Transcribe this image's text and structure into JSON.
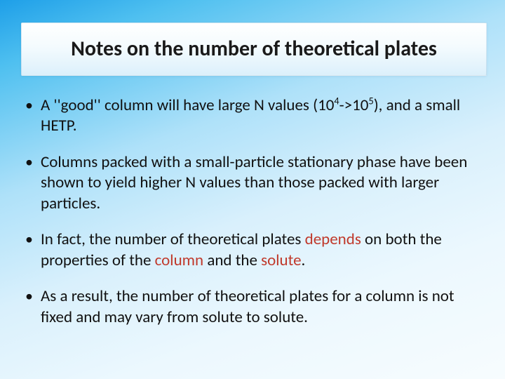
{
  "slide": {
    "background_gradient": [
      "#1e9fe8",
      "#4fc0f0",
      "#aee1f9",
      "#d9f0fc",
      "#ecf8fe",
      "#f7fcfe"
    ],
    "highlight_color": "#c0392b",
    "text_color": "#111111",
    "font_family": "Calibri",
    "title_fontsize_pt": 30,
    "bullet_fontsize_pt": 23
  },
  "title": {
    "text": "Notes on the number of theoretical plates",
    "box_gradient": [
      "#ffffff",
      "#f4fbfe",
      "#dcf0fb"
    ]
  },
  "bullets": {
    "b1_pre": "A ''good'' column will have large N values (10",
    "b1_sup1": "4",
    "b1_mid": "->10",
    "b1_sup2": "5",
    "b1_post": "), and a small HETP.",
    "b2": "Columns packed with a small-particle stationary phase have been shown to yield higher N values than those packed with larger particles.",
    "b3_a": "In fact, the number of theoretical plates ",
    "b3_hl1": "depends ",
    "b3_b": "on both the properties of the ",
    "b3_hl2": "column ",
    "b3_c": "and the ",
    "b3_hl3": "solute",
    "b3_d": ".",
    "b4": "As a result, the number of theoretical plates for a column is not fixed and may vary from solute to solute."
  }
}
